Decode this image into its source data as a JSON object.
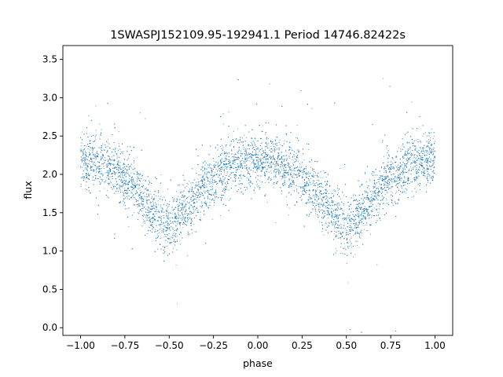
{
  "chart_data": {
    "type": "scatter",
    "title": "1SWASPJ152109.95-192941.1 Period 14746.82422s",
    "xlabel": "phase",
    "ylabel": "flux",
    "xlim": [
      -1.1,
      1.1
    ],
    "ylim": [
      -0.1,
      3.68
    ],
    "x_ticks": [
      -1.0,
      -0.75,
      -0.5,
      -0.25,
      0.0,
      0.25,
      0.5,
      0.75,
      1.0
    ],
    "x_tick_labels": [
      "−1.00",
      "−0.75",
      "−0.50",
      "−0.25",
      "0.00",
      "0.25",
      "0.50",
      "0.75",
      "1.00"
    ],
    "y_ticks": [
      0.0,
      0.5,
      1.0,
      1.5,
      2.0,
      2.5,
      3.0,
      3.5
    ],
    "y_tick_labels": [
      "0.0",
      "0.5",
      "1.0",
      "1.5",
      "2.0",
      "2.5",
      "3.0",
      "3.5"
    ],
    "grid": false,
    "legend": "none",
    "point_color": "#1f77b4",
    "phase_range": [
      -1.0,
      1.0
    ],
    "mean_flux_profile": {
      "phase": [
        -1.0,
        -0.9,
        -0.8,
        -0.7,
        -0.6,
        -0.5,
        -0.4,
        -0.3,
        -0.2,
        -0.1,
        0.0,
        0.1,
        0.2,
        0.3,
        0.4,
        0.5,
        0.6,
        0.7,
        0.8,
        0.9,
        1.0
      ],
      "flux": [
        2.2,
        2.15,
        2.05,
        1.85,
        1.55,
        1.3,
        1.55,
        1.85,
        2.05,
        2.15,
        2.2,
        2.15,
        2.05,
        1.85,
        1.55,
        1.3,
        1.55,
        1.85,
        2.05,
        2.15,
        2.2
      ]
    },
    "approx_scatter_sigma": 0.18
  }
}
